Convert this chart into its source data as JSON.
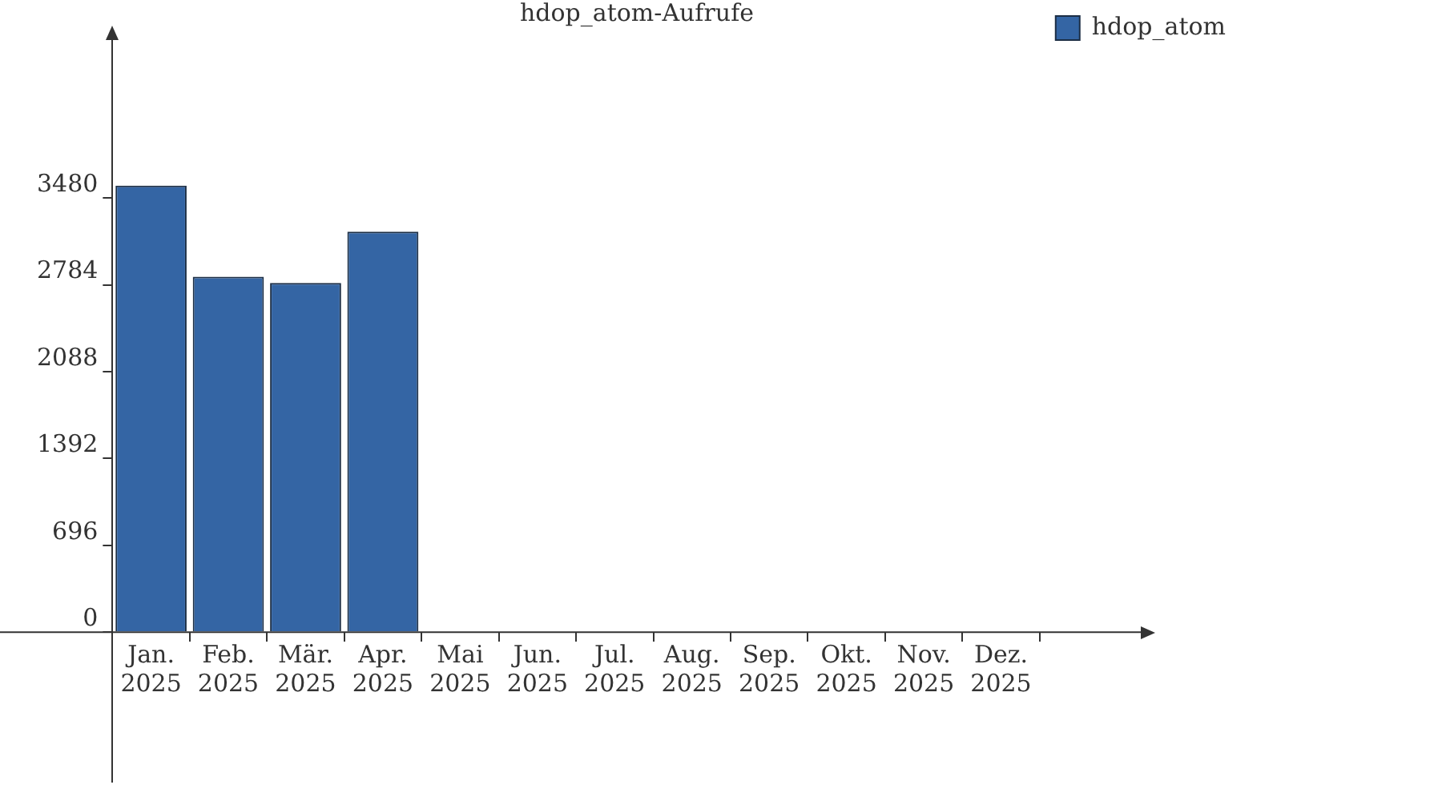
{
  "chart_data": {
    "type": "bar",
    "title": "hdop_atom-Aufrufe",
    "categories": [
      "Jan. 2025",
      "Feb. 2025",
      "Mär. 2025",
      "Apr. 2025",
      "Mai 2025",
      "Jun. 2025",
      "Jul. 2025",
      "Aug. 2025",
      "Sep. 2025",
      "Okt. 2025",
      "Nov. 2025",
      "Dez. 2025"
    ],
    "series": [
      {
        "name": "hdop_atom",
        "color": "#3465a4",
        "values": [
          3580,
          2850,
          2800,
          3210,
          0,
          0,
          0,
          0,
          0,
          0,
          0,
          0
        ]
      }
    ],
    "ylim": [
      -1200,
      4760
    ],
    "yticks": [
      0,
      696,
      1392,
      2088,
      2784,
      3480
    ],
    "grid": false,
    "legend": "top right"
  }
}
